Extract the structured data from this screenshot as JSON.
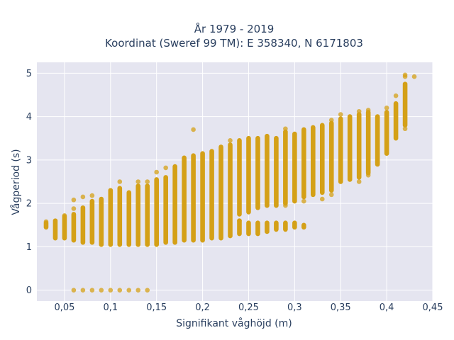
{
  "chart_data": {
    "type": "scatter",
    "title_line1": "År 1979 - 2019",
    "title_line2": "Koordinat (Sweref 99 TM): E 358340, N 6171803",
    "xlabel": "Signifikant våghöjd (m)",
    "ylabel": "Vågperiod (s)",
    "xlim": [
      0.02,
      0.45
    ],
    "ylim": [
      -0.25,
      5.25
    ],
    "x_ticks": [
      0.05,
      0.1,
      0.15,
      0.2,
      0.25,
      0.3,
      0.35,
      0.4,
      0.45
    ],
    "x_tick_labels": [
      "0,05",
      "0,1",
      "0,15",
      "0,2",
      "0,25",
      "0,3",
      "0,35",
      "0,4",
      "0,45"
    ],
    "y_ticks": [
      0,
      1,
      2,
      3,
      4,
      5
    ],
    "y_tick_labels": [
      "0",
      "1",
      "2",
      "3",
      "4",
      "5"
    ],
    "grid": true,
    "marker_color": "#D4A017",
    "plot_bg": "#E5E5F0",
    "columns": [
      {
        "x": 0.03,
        "ymin": 1.45,
        "ymax": 1.55
      },
      {
        "x": 0.04,
        "ymin": 1.2,
        "ymax": 1.6
      },
      {
        "x": 0.05,
        "ymin": 1.2,
        "ymax": 1.7
      },
      {
        "x": 0.06,
        "ymin": 1.15,
        "ymax": 1.75
      },
      {
        "x": 0.07,
        "ymin": 1.1,
        "ymax": 1.9
      },
      {
        "x": 0.08,
        "ymin": 1.1,
        "ymax": 2.05
      },
      {
        "x": 0.09,
        "ymin": 1.05,
        "ymax": 2.1
      },
      {
        "x": 0.1,
        "ymin": 1.05,
        "ymax": 2.3
      },
      {
        "x": 0.11,
        "ymin": 1.05,
        "ymax": 2.35
      },
      {
        "x": 0.12,
        "ymin": 1.05,
        "ymax": 2.25
      },
      {
        "x": 0.13,
        "ymin": 1.05,
        "ymax": 2.4
      },
      {
        "x": 0.14,
        "ymin": 1.05,
        "ymax": 2.4
      },
      {
        "x": 0.15,
        "ymin": 1.05,
        "ymax": 2.55
      },
      {
        "x": 0.16,
        "ymin": 1.1,
        "ymax": 2.6
      },
      {
        "x": 0.17,
        "ymin": 1.1,
        "ymax": 2.85
      },
      {
        "x": 0.18,
        "ymin": 1.15,
        "ymax": 3.05
      },
      {
        "x": 0.19,
        "ymin": 1.15,
        "ymax": 3.1
      },
      {
        "x": 0.2,
        "ymin": 1.15,
        "ymax": 3.15
      },
      {
        "x": 0.21,
        "ymin": 1.2,
        "ymax": 3.2
      },
      {
        "x": 0.22,
        "ymin": 1.2,
        "ymax": 3.3
      },
      {
        "x": 0.23,
        "ymin": 1.25,
        "ymax": 3.35
      },
      {
        "x": 0.24,
        "ymin": 1.75,
        "ymax": 3.45
      },
      {
        "x": 0.25,
        "ymin": 1.8,
        "ymax": 3.5
      },
      {
        "x": 0.26,
        "ymin": 1.9,
        "ymax": 3.5
      },
      {
        "x": 0.27,
        "ymin": 1.95,
        "ymax": 3.55
      },
      {
        "x": 0.28,
        "ymin": 1.95,
        "ymax": 3.5
      },
      {
        "x": 0.29,
        "ymin": 2.0,
        "ymax": 3.65
      },
      {
        "x": 0.3,
        "ymin": 2.05,
        "ymax": 3.6
      },
      {
        "x": 0.31,
        "ymin": 2.15,
        "ymax": 3.7
      },
      {
        "x": 0.32,
        "ymin": 2.2,
        "ymax": 3.75
      },
      {
        "x": 0.33,
        "ymin": 2.25,
        "ymax": 3.8
      },
      {
        "x": 0.34,
        "ymin": 2.3,
        "ymax": 3.85
      },
      {
        "x": 0.35,
        "ymin": 2.5,
        "ymax": 3.95
      },
      {
        "x": 0.36,
        "ymin": 2.55,
        "ymax": 4.0
      },
      {
        "x": 0.37,
        "ymin": 2.6,
        "ymax": 4.05
      },
      {
        "x": 0.38,
        "ymin": 2.7,
        "ymax": 4.1
      },
      {
        "x": 0.39,
        "ymin": 2.9,
        "ymax": 4.0
      },
      {
        "x": 0.4,
        "ymin": 3.15,
        "ymax": 4.1
      },
      {
        "x": 0.41,
        "ymin": 3.5,
        "ymax": 4.3
      },
      {
        "x": 0.42,
        "ymin": 3.8,
        "ymax": 4.75
      }
    ],
    "low_branch": [
      {
        "x": 0.24,
        "ymin": 1.3,
        "ymax": 1.6
      },
      {
        "x": 0.25,
        "ymin": 1.3,
        "ymax": 1.55
      },
      {
        "x": 0.26,
        "ymin": 1.3,
        "ymax": 1.55
      },
      {
        "x": 0.27,
        "ymin": 1.35,
        "ymax": 1.55
      },
      {
        "x": 0.28,
        "ymin": 1.4,
        "ymax": 1.55
      },
      {
        "x": 0.29,
        "ymin": 1.4,
        "ymax": 1.55
      },
      {
        "x": 0.3,
        "ymin": 1.45,
        "ymax": 1.55
      },
      {
        "x": 0.31,
        "ymin": 1.45,
        "ymax": 1.5
      }
    ],
    "outliers": [
      [
        0.03,
        1.58
      ],
      [
        0.05,
        1.72
      ],
      [
        0.06,
        1.88
      ],
      [
        0.06,
        2.08
      ],
      [
        0.07,
        2.15
      ],
      [
        0.08,
        2.18
      ],
      [
        0.11,
        2.5
      ],
      [
        0.13,
        2.5
      ],
      [
        0.14,
        2.5
      ],
      [
        0.14,
        1.15
      ],
      [
        0.15,
        2.72
      ],
      [
        0.16,
        2.82
      ],
      [
        0.19,
        3.7
      ],
      [
        0.23,
        3.45
      ],
      [
        0.24,
        1.6
      ],
      [
        0.29,
        1.95
      ],
      [
        0.29,
        3.72
      ],
      [
        0.31,
        2.05
      ],
      [
        0.33,
        2.1
      ],
      [
        0.34,
        2.2
      ],
      [
        0.34,
        3.92
      ],
      [
        0.35,
        4.05
      ],
      [
        0.37,
        2.5
      ],
      [
        0.37,
        4.12
      ],
      [
        0.38,
        4.15
      ],
      [
        0.38,
        2.65
      ],
      [
        0.39,
        3.97
      ],
      [
        0.39,
        2.95
      ],
      [
        0.4,
        4.2
      ],
      [
        0.41,
        4.48
      ],
      [
        0.42,
        3.72
      ],
      [
        0.42,
        4.92
      ],
      [
        0.42,
        4.96
      ],
      [
        0.43,
        4.92
      ],
      [
        0.06,
        0.0
      ],
      [
        0.07,
        0.0
      ],
      [
        0.08,
        0.0
      ],
      [
        0.09,
        0.0
      ],
      [
        0.1,
        0.0
      ],
      [
        0.11,
        0.0
      ],
      [
        0.12,
        0.0
      ],
      [
        0.13,
        0.0
      ],
      [
        0.14,
        0.0
      ]
    ]
  }
}
